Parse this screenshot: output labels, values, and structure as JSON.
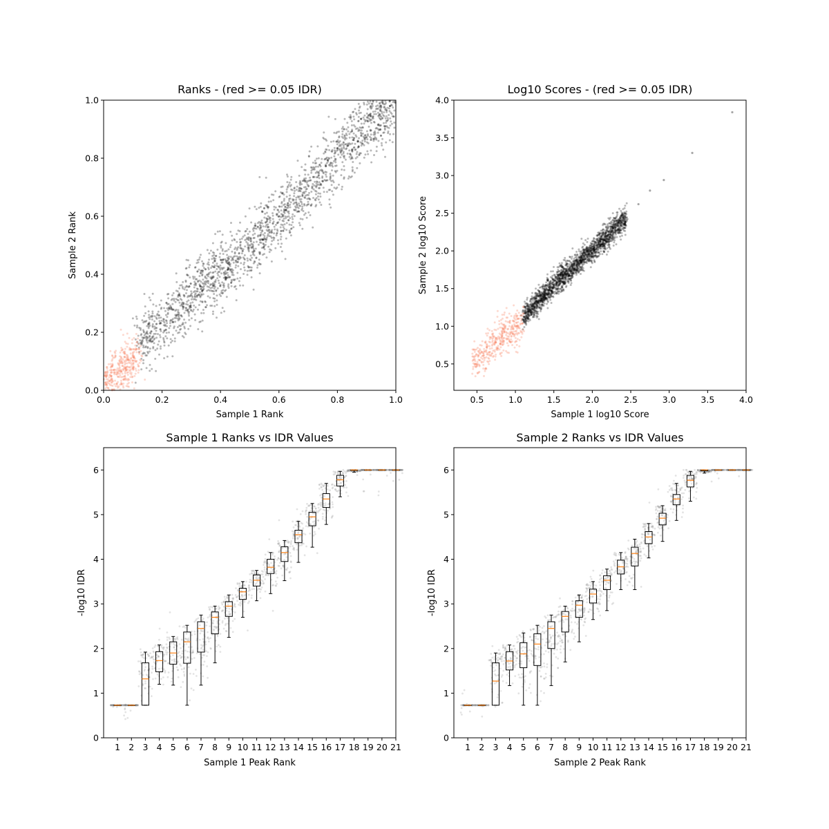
{
  "chart_data": [
    {
      "type": "scatter",
      "title": "Ranks - (red >= 0.05 IDR)",
      "xlabel": "Sample 1 Rank",
      "ylabel": "Sample 2 Rank",
      "xlim": [
        0.0,
        1.0
      ],
      "ylim": [
        0.0,
        1.0
      ],
      "xticks": [
        "0.0",
        "0.2",
        "0.4",
        "0.6",
        "0.8",
        "1.0"
      ],
      "yticks": [
        "0.0",
        "0.2",
        "0.4",
        "0.6",
        "0.8",
        "1.0"
      ],
      "colors": {
        "pass": "#000000",
        "fail": "#fa8060"
      },
      "series": [
        {
          "trend": [
            [
              0.12,
              0.16
            ],
            [
              0.3,
              0.32
            ],
            [
              0.5,
              0.49
            ],
            [
              0.7,
              0.7
            ],
            [
              0.9,
              0.91
            ],
            [
              1.0,
              1.0
            ]
          ],
          "spread_y": 0.055,
          "approx_points": 2000
        },
        {
          "trend": [
            [
              0.0,
              0.02
            ],
            [
              0.05,
              0.07
            ],
            [
              0.12,
              0.12
            ]
          ],
          "spread_y": 0.04,
          "approx_points": 400
        }
      ]
    },
    {
      "type": "scatter",
      "title": "Log10 Scores - (red >= 0.05 IDR)",
      "xlabel": "Sample 1 log10 Score",
      "ylabel": "Sample 2 log10 Score",
      "xlim": [
        0.2,
        4.0
      ],
      "ylim": [
        0.15,
        4.0
      ],
      "xticks": [
        "0.5",
        "1.0",
        "1.5",
        "2.0",
        "2.5",
        "3.0",
        "3.5",
        "4.0"
      ],
      "yticks": [
        "0.5",
        "1.0",
        "1.5",
        "2.0",
        "2.5",
        "3.0",
        "3.5",
        "4.0"
      ],
      "colors": {
        "pass": "#000000",
        "fail": "#fa8060"
      },
      "series": [
        {
          "trend": [
            [
              1.1,
              1.12
            ],
            [
              1.5,
              1.55
            ],
            [
              2.0,
              2.0
            ],
            [
              2.45,
              2.45
            ]
          ],
          "spread_y": 0.08,
          "approx_points": 2000
        },
        {
          "trend": [
            [
              0.45,
              0.5
            ],
            [
              0.8,
              0.85
            ],
            [
              1.1,
              1.05
            ]
          ],
          "spread_y": 0.12,
          "approx_points": 400
        }
      ],
      "outliers": [
        [
          3.82,
          3.84
        ],
        [
          3.3,
          3.3
        ],
        [
          2.93,
          2.94
        ],
        [
          2.6,
          2.62
        ],
        [
          2.75,
          2.8
        ]
      ]
    },
    {
      "type": "box",
      "title": "Sample 1 Ranks vs IDR Values",
      "xlabel": "Sample 1 Peak Rank",
      "ylabel": "-log10 IDR",
      "ylim": [
        0,
        6.5
      ],
      "yticks": [
        "0",
        "1",
        "2",
        "3",
        "4",
        "5",
        "6"
      ],
      "categories": [
        "1",
        "2",
        "3",
        "4",
        "5",
        "6",
        "7",
        "8",
        "9",
        "10",
        "11",
        "12",
        "13",
        "14",
        "15",
        "16",
        "17",
        "18",
        "19",
        "20",
        "21"
      ],
      "boxes": [
        [
          0.73,
          0.73,
          0.73,
          0.73,
          0.73
        ],
        [
          0.73,
          0.73,
          0.73,
          0.73,
          0.73
        ],
        [
          0.73,
          0.73,
          1.32,
          1.68,
          1.92
        ],
        [
          1.2,
          1.48,
          1.73,
          1.93,
          2.08
        ],
        [
          1.18,
          1.65,
          1.9,
          2.15,
          2.27
        ],
        [
          0.73,
          1.67,
          2.15,
          2.37,
          2.52
        ],
        [
          1.18,
          1.92,
          2.45,
          2.6,
          2.75
        ],
        [
          1.68,
          2.33,
          2.7,
          2.82,
          2.95
        ],
        [
          2.25,
          2.72,
          2.95,
          3.05,
          3.2
        ],
        [
          2.7,
          3.1,
          3.27,
          3.35,
          3.5
        ],
        [
          3.07,
          3.4,
          3.53,
          3.65,
          3.75
        ],
        [
          3.23,
          3.68,
          3.82,
          4.0,
          4.15
        ],
        [
          3.52,
          3.95,
          4.15,
          4.28,
          4.42
        ],
        [
          3.93,
          4.37,
          4.55,
          4.65,
          4.85
        ],
        [
          4.27,
          4.75,
          4.95,
          5.05,
          5.25
        ],
        [
          4.78,
          5.16,
          5.35,
          5.47,
          5.7
        ],
        [
          5.4,
          5.64,
          5.78,
          5.88,
          5.97
        ],
        [
          5.95,
          5.99,
          6.0,
          6.0,
          6.0
        ],
        [
          6.0,
          6.0,
          6.0,
          6.0,
          6.0
        ],
        [
          6.0,
          6.0,
          6.0,
          6.0,
          6.0
        ],
        [
          6.0,
          6.0,
          6.0,
          6.0,
          6.0
        ]
      ],
      "colors": {
        "box": "#000000",
        "median": "#ff7f0e",
        "points": "#808080"
      }
    },
    {
      "type": "box",
      "title": "Sample 2 Ranks vs IDR Values",
      "xlabel": "Sample 2 Peak Rank",
      "ylabel": "-log10 IDR",
      "ylim": [
        0,
        6.5
      ],
      "yticks": [
        "0",
        "1",
        "2",
        "3",
        "4",
        "5",
        "6"
      ],
      "categories": [
        "1",
        "2",
        "3",
        "4",
        "5",
        "6",
        "7",
        "8",
        "9",
        "10",
        "11",
        "12",
        "13",
        "14",
        "15",
        "16",
        "17",
        "18",
        "19",
        "20",
        "21"
      ],
      "boxes": [
        [
          0.73,
          0.73,
          0.73,
          0.73,
          0.73
        ],
        [
          0.73,
          0.73,
          0.73,
          0.73,
          0.73
        ],
        [
          0.73,
          0.73,
          1.27,
          1.68,
          1.9
        ],
        [
          1.17,
          1.52,
          1.72,
          1.93,
          2.08
        ],
        [
          0.73,
          1.57,
          1.88,
          2.13,
          2.35
        ],
        [
          0.73,
          1.62,
          2.1,
          2.33,
          2.52
        ],
        [
          1.17,
          2.0,
          2.45,
          2.6,
          2.75
        ],
        [
          1.7,
          2.37,
          2.72,
          2.83,
          2.95
        ],
        [
          2.15,
          2.7,
          2.97,
          3.07,
          3.2
        ],
        [
          2.65,
          3.02,
          3.22,
          3.33,
          3.5
        ],
        [
          2.85,
          3.32,
          3.53,
          3.63,
          3.78
        ],
        [
          3.32,
          3.67,
          3.83,
          3.98,
          4.15
        ],
        [
          3.32,
          3.85,
          4.13,
          4.27,
          4.45
        ],
        [
          4.03,
          4.35,
          4.5,
          4.62,
          4.8
        ],
        [
          4.4,
          4.77,
          4.92,
          5.03,
          5.2
        ],
        [
          4.87,
          5.22,
          5.35,
          5.45,
          5.7
        ],
        [
          5.3,
          5.62,
          5.77,
          5.88,
          5.97
        ],
        [
          5.93,
          5.98,
          6.0,
          6.0,
          6.0
        ],
        [
          6.0,
          6.0,
          6.0,
          6.0,
          6.0
        ],
        [
          6.0,
          6.0,
          6.0,
          6.0,
          6.0
        ],
        [
          6.0,
          6.0,
          6.0,
          6.0,
          6.0
        ]
      ],
      "colors": {
        "box": "#000000",
        "median": "#ff7f0e",
        "points": "#808080"
      }
    }
  ]
}
